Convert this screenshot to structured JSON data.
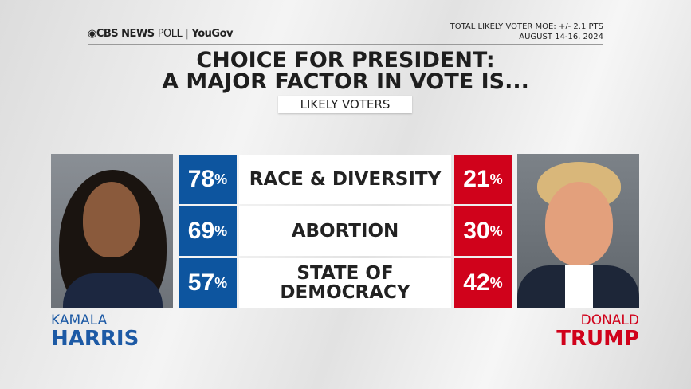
{
  "header": {
    "brand": "CBS NEWS",
    "brand_poll": "POLL",
    "partner": "YouGov",
    "moe": "TOTAL LIKELY VOTER MOE: +/- 2.1 PTS",
    "dates": "AUGUST 14-16, 2024"
  },
  "title_line1": "CHOICE FOR PRESIDENT:",
  "title_line2": "A MAJOR FACTOR IN VOTE IS...",
  "subtitle": "LIKELY VOTERS",
  "candidates": {
    "left": {
      "first": "KAMALA",
      "last": "HARRIS",
      "color": "#0d559f"
    },
    "right": {
      "first": "DONALD",
      "last": "TRUMP",
      "color": "#d0021b"
    }
  },
  "chart_data": {
    "type": "table",
    "title": "CHOICE FOR PRESIDENT: A MAJOR FACTOR IN VOTE IS...",
    "subtitle": "LIKELY VOTERS",
    "categories": [
      "RACE & DIVERSITY",
      "ABORTION",
      "STATE OF DEMOCRACY"
    ],
    "series": [
      {
        "name": "KAMALA HARRIS",
        "values": [
          78,
          69,
          57
        ],
        "color": "#0d559f"
      },
      {
        "name": "DONALD TRUMP",
        "values": [
          21,
          30,
          42
        ],
        "color": "#d0021b"
      }
    ],
    "unit": "%"
  },
  "rows": [
    {
      "label": "RACE & DIVERSITY",
      "harris": "78",
      "trump": "21"
    },
    {
      "label": "ABORTION",
      "harris": "69",
      "trump": "30"
    },
    {
      "label": "STATE OF DEMOCRACY",
      "harris": "57",
      "trump": "42"
    }
  ],
  "pct_sign": "%"
}
